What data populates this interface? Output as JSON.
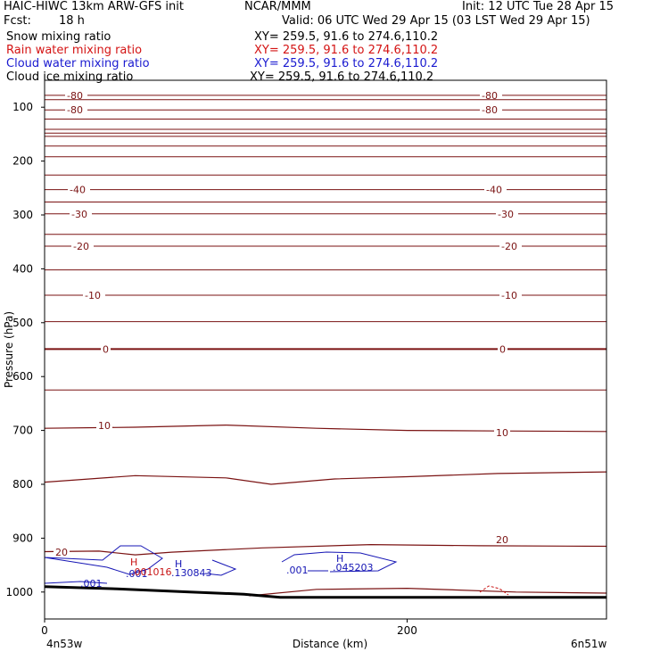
{
  "header": {
    "model": "HAIC-HIWC 13km ARW-GFS init",
    "org": "NCAR/MMM",
    "init": "Init: 12 UTC Tue 28 Apr 15",
    "fcst_label": "Fcst:",
    "fcst_value": "18 h",
    "valid": "Valid: 06 UTC Wed 29 Apr 15 (03 LST Wed 29 Apr 15)"
  },
  "fields": [
    {
      "name": "Snow mixing ratio",
      "xy": "XY= 259.5, 91.6 to 274.6,110.2",
      "color": "#000000"
    },
    {
      "name": "Rain water mixing ratio",
      "xy": "XY= 259.5, 91.6 to 274.6,110.2",
      "color": "#d41414"
    },
    {
      "name": "Cloud water mixing ratio",
      "xy": "XY= 259.5, 91.6 to 274.6,110.2",
      "color": "#1a1ad0"
    },
    {
      "name": "Cloud ice mixing ratio",
      "xy": "XY= 259.5, 91.6 to 274.6,110.2",
      "color": "#000000"
    }
  ],
  "colors": {
    "isotherm": "#7a1212",
    "cloud_water": "#1515b5",
    "rain": "#c81414",
    "terrain": "#000000"
  },
  "chart_data": {
    "type": "line",
    "xlabel": "Distance (km)",
    "ylabel": "Pressure (hPa)",
    "xlim": [
      0,
      310
    ],
    "ylim": [
      1050,
      50
    ],
    "x_ticks": [
      0,
      200
    ],
    "y_ticks": [
      100,
      200,
      300,
      400,
      500,
      600,
      700,
      800,
      900,
      1000
    ],
    "endpoint_left": "4n53w",
    "endpoint_right": "6n51w",
    "isotherms_level": [
      {
        "p": 78,
        "label": "-80"
      },
      {
        "p": 86
      },
      {
        "p": 105,
        "label": "-80"
      },
      {
        "p": 122
      },
      {
        "p": 141
      },
      {
        "p": 148
      },
      {
        "p": 154
      },
      {
        "p": 172
      },
      {
        "p": 192
      },
      {
        "p": 226
      },
      {
        "p": 253,
        "label": "-40"
      },
      {
        "p": 276
      },
      {
        "p": 298,
        "label": "-30"
      },
      {
        "p": 336
      },
      {
        "p": 358,
        "label": "-20"
      },
      {
        "p": 402
      },
      {
        "p": 449,
        "label": "-10"
      },
      {
        "p": 498
      },
      {
        "p": 549,
        "label": "0"
      },
      {
        "p": 625
      }
    ],
    "isotherm_tilted": [
      {
        "label": "10",
        "points": [
          [
            0,
            696
          ],
          [
            50,
            694
          ],
          [
            100,
            690
          ],
          [
            150,
            696
          ],
          [
            200,
            700
          ],
          [
            250,
            701
          ],
          [
            310,
            702
          ]
        ]
      },
      {
        "label": "",
        "points": [
          [
            0,
            796
          ],
          [
            50,
            784
          ],
          [
            100,
            788
          ],
          [
            125,
            800
          ],
          [
            160,
            790
          ],
          [
            200,
            786
          ],
          [
            250,
            780
          ],
          [
            310,
            777
          ]
        ]
      },
      {
        "label": "20",
        "points": [
          [
            0,
            925
          ],
          [
            30,
            924
          ],
          [
            50,
            931
          ],
          [
            70,
            926
          ],
          [
            120,
            918
          ],
          [
            180,
            912
          ],
          [
            240,
            914
          ],
          [
            310,
            915
          ]
        ]
      },
      {
        "label": "",
        "points": [
          [
            113,
            1007
          ],
          [
            150,
            995
          ],
          [
            200,
            993
          ],
          [
            260,
            1000
          ],
          [
            310,
            1002
          ]
        ]
      }
    ],
    "cloud_water": {
      "labels": [
        ".001",
        ".001",
        "H",
        ".130843",
        ".001",
        "H",
        ".045203"
      ],
      "h_max": [
        0.130843,
        0.045203
      ]
    },
    "rain_water": {
      "labels": [
        "H",
        ".001016"
      ],
      "h_max": [
        0.001016
      ]
    },
    "terrain": [
      [
        0,
        990
      ],
      [
        40,
        994
      ],
      [
        80,
        1000
      ],
      [
        110,
        1004
      ],
      [
        130,
        1010
      ],
      [
        310,
        1010
      ]
    ]
  }
}
